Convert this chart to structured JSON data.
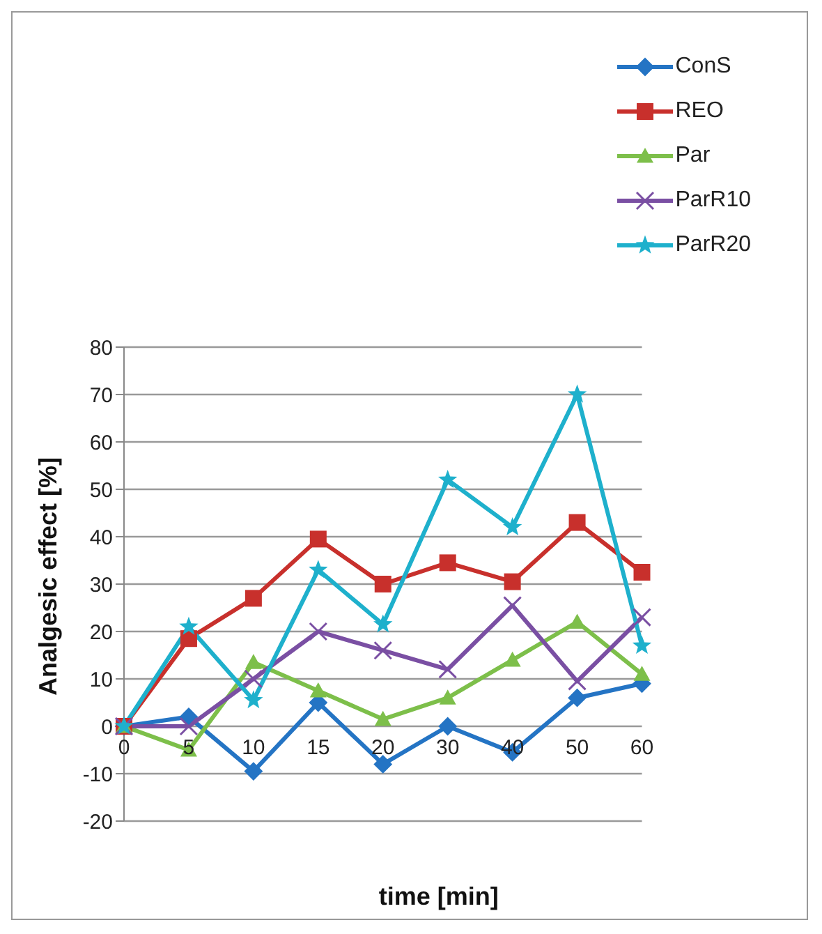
{
  "chart_data": {
    "type": "line",
    "ylabel": "Analgesic effect [%]",
    "xlabel": "time [min]",
    "categories": [
      "0",
      "5",
      "10",
      "15",
      "20",
      "30",
      "40",
      "50",
      "60"
    ],
    "series": [
      {
        "name": "ConS",
        "color": "#2474c4",
        "marker": "diamond",
        "values": [
          0,
          2,
          -9.5,
          5,
          -8,
          0,
          -5.5,
          6,
          9
        ]
      },
      {
        "name": "REO",
        "color": "#c8302c",
        "marker": "square",
        "values": [
          0,
          18.5,
          27,
          39.5,
          30,
          34.5,
          30.5,
          43,
          32.5
        ]
      },
      {
        "name": "Par",
        "color": "#7dbf4a",
        "marker": "triangle",
        "values": [
          0,
          -5,
          13.5,
          7.5,
          1.5,
          6,
          14,
          22,
          11
        ]
      },
      {
        "name": "ParR10",
        "color": "#7a4fa3",
        "marker": "cross",
        "values": [
          0,
          0,
          10,
          20,
          16,
          12,
          25.5,
          9.5,
          23
        ]
      },
      {
        "name": "ParR20",
        "color": "#1eb0cc",
        "marker": "star",
        "values": [
          0,
          21,
          5.5,
          33,
          21.5,
          52,
          42,
          70,
          17
        ]
      }
    ],
    "ylim": [
      -20,
      80
    ],
    "yticks": [
      -20,
      -10,
      0,
      10,
      20,
      30,
      40,
      50,
      60,
      70,
      80
    ],
    "grid": "y",
    "legend": "top right",
    "line_style": "solid"
  }
}
